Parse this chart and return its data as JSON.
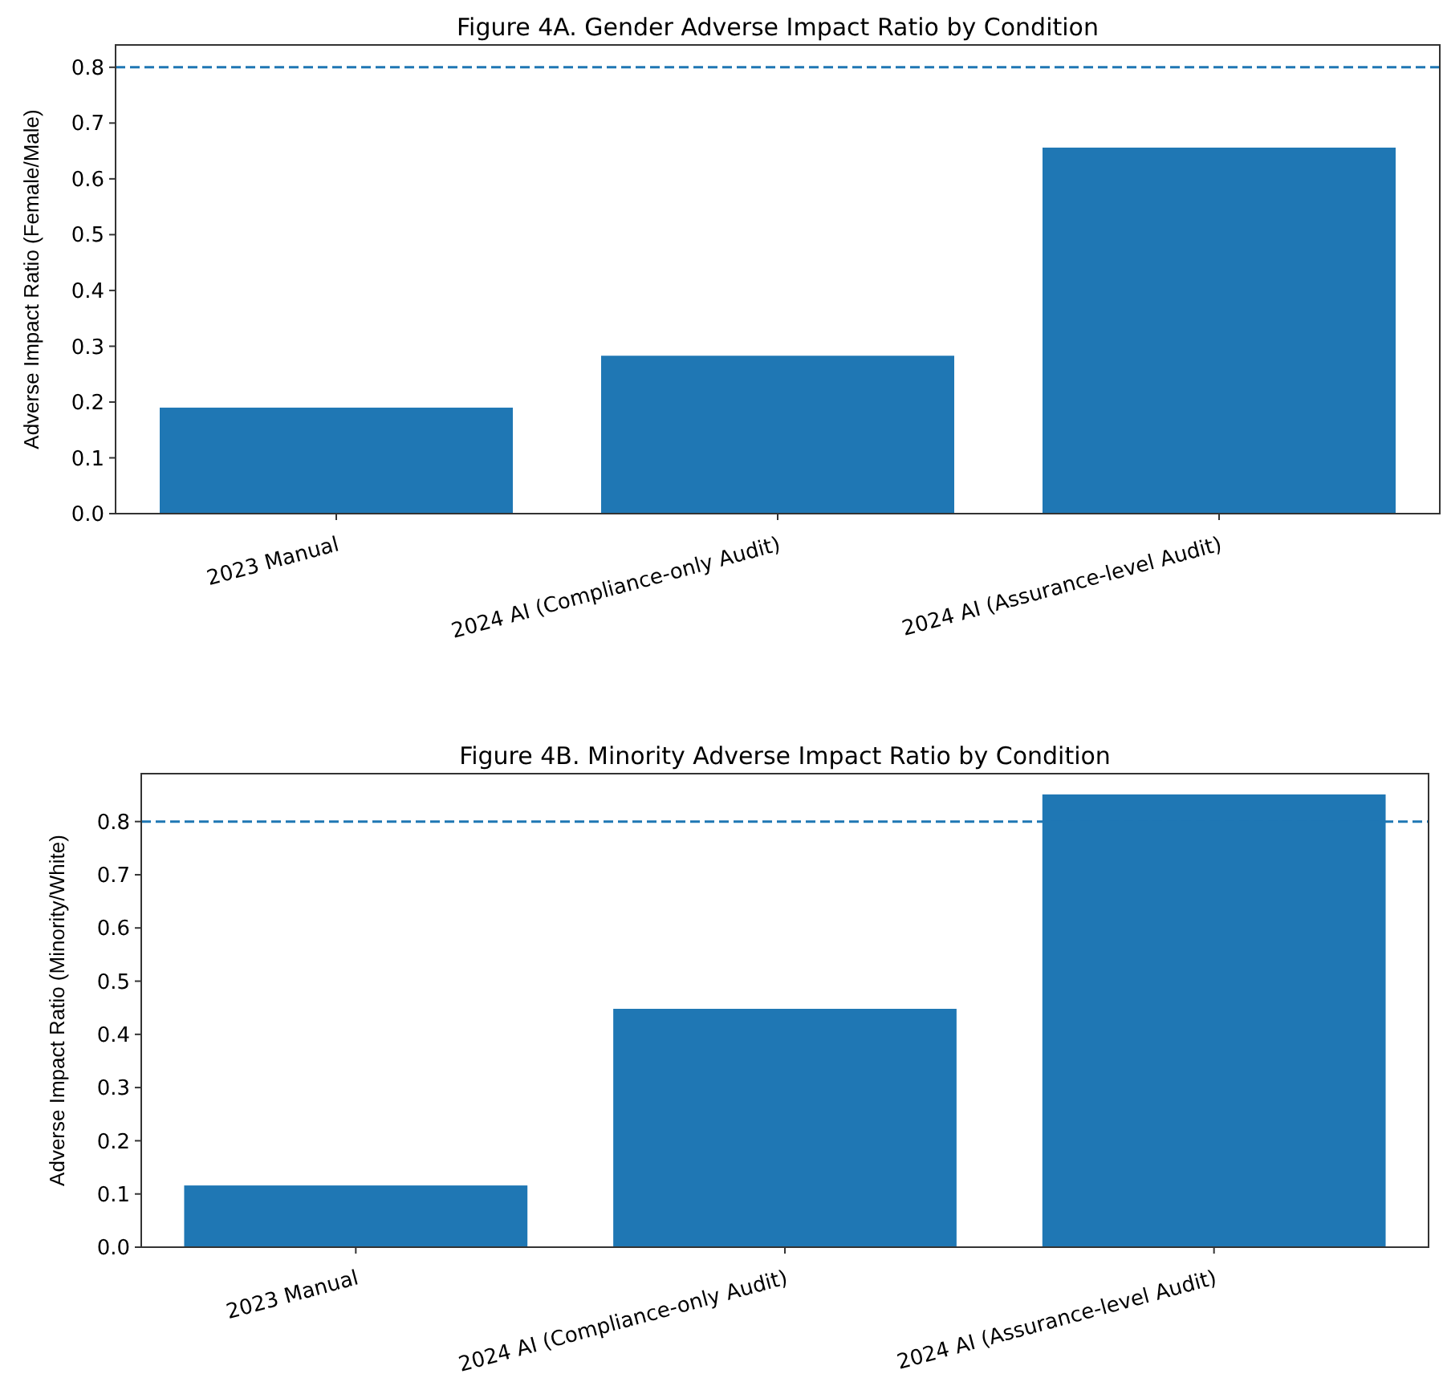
{
  "chart_data": [
    {
      "type": "bar",
      "title": "Figure 4A. Gender Adverse Impact Ratio by Condition",
      "ylabel": "Adverse Impact Ratio (Female/Male)",
      "categories": [
        "2023 Manual",
        "2024 AI (Compliance-only Audit)",
        "2024 AI (Assurance-level Audit)"
      ],
      "values": [
        0.19,
        0.283,
        0.656
      ],
      "color": "#1f77b4",
      "ylim": [
        0,
        0.84
      ],
      "yticks": [
        {
          "value": 0,
          "label": "0.0"
        },
        0.1,
        0.2,
        0.3,
        0.4,
        0.5,
        0.6,
        0.7,
        0.8
      ],
      "ref_lines": [
        {
          "axis": "y",
          "value": 0.8,
          "color": "#1f77b4",
          "line_style": "dashed"
        }
      ],
      "grid": false
    },
    {
      "type": "bar",
      "title": "Figure 4B. Minority Adverse Impact Ratio by Condition",
      "ylabel": "Adverse Impact Ratio (Minority/White)",
      "categories": [
        "2023 Manual",
        "2024 AI (Compliance-only Audit)",
        "2024 AI (Assurance-level Audit)"
      ],
      "values": [
        0.116,
        0.448,
        0.851
      ],
      "color": "#1f77b4",
      "ylim": [
        0,
        0.89
      ],
      "yticks": [
        {
          "value": 0,
          "label": "0.0"
        },
        0.1,
        0.2,
        0.3,
        0.4,
        0.5,
        0.6,
        0.7,
        0.8
      ],
      "ref_lines": [
        {
          "axis": "y",
          "value": 0.8,
          "color": "#1f77b4",
          "line_style": "dashed"
        }
      ],
      "grid": false
    }
  ]
}
